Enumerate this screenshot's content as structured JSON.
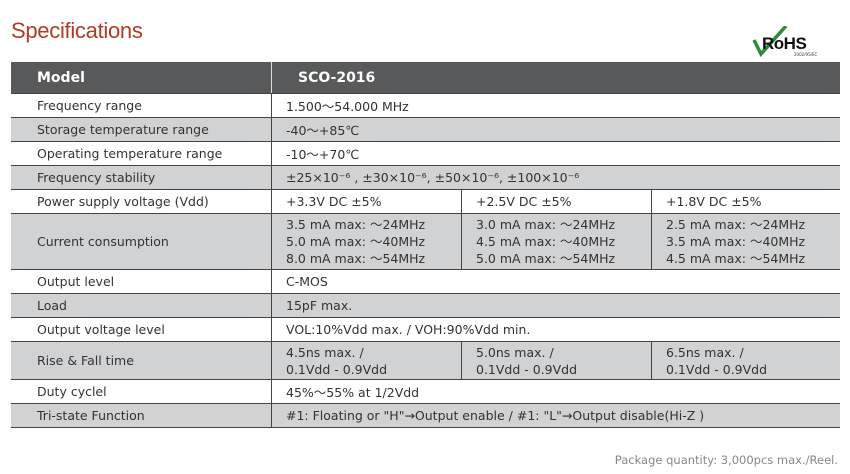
{
  "title": "Specifications",
  "logo": {
    "text": "RoHS",
    "subtext": "2002/95/EC",
    "check_color": "#2e8b3a"
  },
  "colors": {
    "title": "#b23a26",
    "header_bg": "#58595b",
    "gray_row": "#d1d2d4"
  },
  "header": {
    "label": "Model",
    "value": "SCO-2016"
  },
  "rows": [
    {
      "label": "Frequency range",
      "value": "1.500～54.000 MHz"
    },
    {
      "label": "Storage temperature range",
      "value": "-40～+85℃"
    },
    {
      "label": "Operating temperature range",
      "value": "-10～+70℃"
    },
    {
      "label": "Frequency stability",
      "value": "±25×10⁻⁶ , ±30×10⁻⁶, ±50×10⁻⁶, ±100×10⁻⁶"
    },
    {
      "label": "Power supply voltage (Vdd)",
      "values": [
        "+3.3V DC ±5%",
        "+2.5V DC ±5%",
        "+1.8V DC ±5%"
      ]
    },
    {
      "label": "Current consumption",
      "values": [
        [
          "3.5 mA max: ～24MHz",
          "5.0 mA max: ～40MHz",
          "8.0 mA max: ～54MHz"
        ],
        [
          "3.0 mA max: ～24MHz",
          "4.5 mA max: ～40MHz",
          "5.0 mA max: ～54MHz"
        ],
        [
          "2.5 mA max: ～24MHz",
          "3.5 mA max: ～40MHz",
          "4.5 mA max: ～54MHz"
        ]
      ]
    },
    {
      "label": "Output level",
      "value": "C-MOS"
    },
    {
      "label": "Load",
      "value": "15pF max."
    },
    {
      "label": "Output voltage level",
      "value": "VOL:10%Vdd max. / VOH:90%Vdd min."
    },
    {
      "label": "Rise & Fall time",
      "values": [
        [
          "4.5ns max. /",
          "0.1Vdd - 0.9Vdd"
        ],
        [
          "5.0ns max. /",
          "0.1Vdd - 0.9Vdd"
        ],
        [
          "6.5ns max. /",
          "0.1Vdd - 0.9Vdd"
        ]
      ]
    },
    {
      "label": "Duty cyclel",
      "value": "45%～55% at 1/2Vdd"
    },
    {
      "label": "Tri-state Function",
      "value": "#1: Floating or \"H\"→Output enable / #1: \"L\"→Output disable(Hi-Z )"
    }
  ],
  "footer_note": "Package quantity: 3,000pcs max./Reel."
}
